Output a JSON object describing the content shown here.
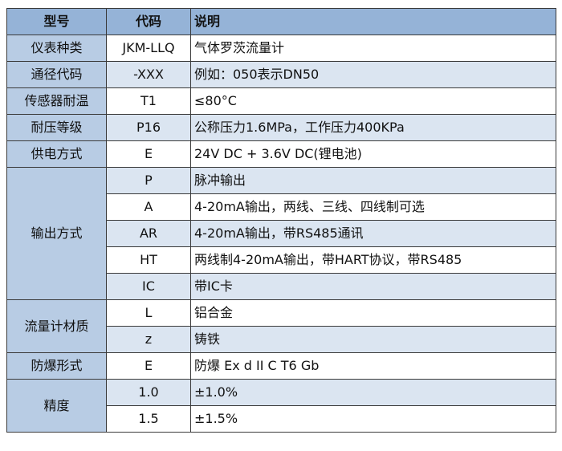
{
  "header": {
    "model": "型号",
    "code": "代码",
    "description": "说明"
  },
  "colors": {
    "header_bg": "#95b3d7",
    "first_col_bg": "#b8cce4",
    "alt_row_bg": "#dbe5f1",
    "border": "#3a3a3a"
  },
  "groups": [
    {
      "label": "仪表种类",
      "rows": [
        {
          "code": "JKM-LLQ",
          "desc": "气体罗茨流量计"
        }
      ]
    },
    {
      "label": "通径代码",
      "rows": [
        {
          "code": "-XXX",
          "desc": "例如：050表示DN50"
        }
      ]
    },
    {
      "label": "传感器耐温",
      "rows": [
        {
          "code": "T1",
          "desc": "≤80°C"
        }
      ]
    },
    {
      "label": "耐压等级",
      "rows": [
        {
          "code": "P16",
          "desc": "公称压力1.6MPa，工作压力400KPa"
        }
      ]
    },
    {
      "label": "供电方式",
      "rows": [
        {
          "code": "E",
          "desc": "24V DC + 3.6V DC(锂电池)"
        }
      ]
    },
    {
      "label": "输出方式",
      "rows": [
        {
          "code": "P",
          "desc": "脉冲输出"
        },
        {
          "code": "A",
          "desc": "4-20mA输出，两线、三线、四线制可选"
        },
        {
          "code": "AR",
          "desc": "4-20mA输出，带RS485通讯"
        },
        {
          "code": "HT",
          "desc": "两线制4-20mA输出，带HART协议，带RS485"
        },
        {
          "code": "IC",
          "desc": "带IC卡"
        }
      ]
    },
    {
      "label": "流量计材质",
      "rows": [
        {
          "code": "L",
          "desc": "铝合金"
        },
        {
          "code": "z",
          "desc": "铸铁"
        }
      ]
    },
    {
      "label": "防爆形式",
      "rows": [
        {
          "code": "E",
          "desc": "防爆 Ex d II C T6 Gb"
        }
      ]
    },
    {
      "label": "精度",
      "rows": [
        {
          "code": "1.0",
          "desc": "±1.0%"
        },
        {
          "code": "1.5",
          "desc": "±1.5%"
        }
      ]
    }
  ]
}
